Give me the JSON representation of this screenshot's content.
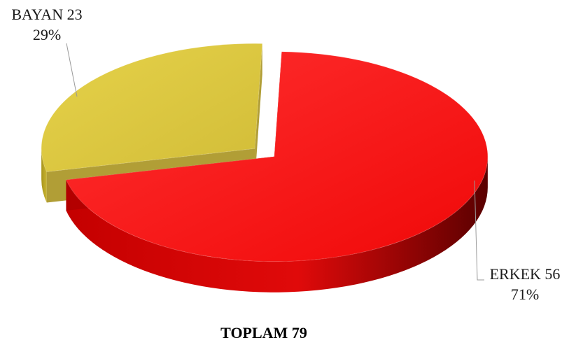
{
  "chart_data": {
    "type": "pie",
    "categories": [
      "ERKEK",
      "BAYAN"
    ],
    "values": [
      56,
      23
    ],
    "percent_labels": [
      "71%",
      "29%"
    ],
    "labels": [
      "ERKEK 56",
      "BAYAN 23"
    ],
    "colors": [
      "#ff1a1a",
      "#d9c640"
    ],
    "style": "3d-exploded",
    "total_label": "TOPLAM 79"
  }
}
